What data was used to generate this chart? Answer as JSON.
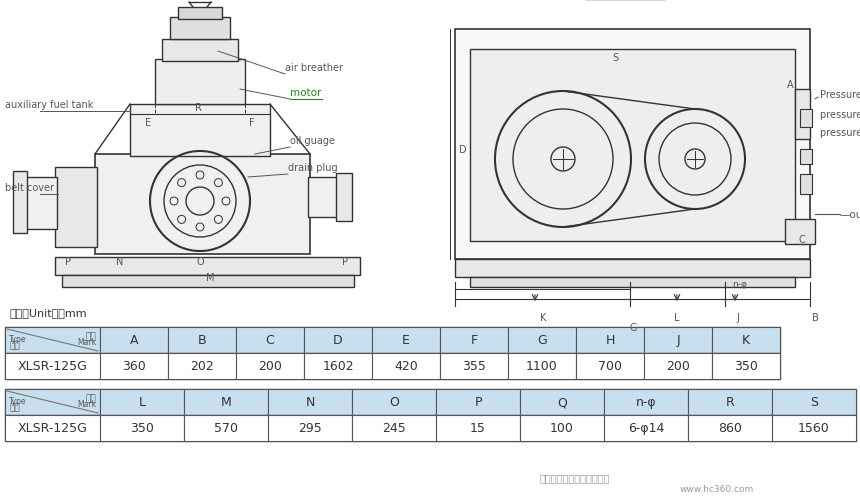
{
  "title_unit": "单位（Unit）；mm",
  "table1_headers": [
    "A",
    "B",
    "C",
    "D",
    "E",
    "F",
    "G",
    "H",
    "J",
    "K"
  ],
  "table1_row": [
    "XLSR-125G",
    "360",
    "202",
    "200",
    "1602",
    "420",
    "355",
    "1100",
    "700",
    "200",
    "350"
  ],
  "table2_headers": [
    "L",
    "M",
    "N",
    "O",
    "P",
    "Q",
    "n-φ",
    "R",
    "S"
  ],
  "table2_row": [
    "XLSR-125G",
    "350",
    "570",
    "295",
    "245",
    "15",
    "100",
    "6-φ14",
    "860",
    "1560"
  ],
  "bg_color": "#ffffff",
  "table_header_bg": "#c8dff0",
  "table_border_color": "#555555",
  "table_cell_bg": "#ffffff",
  "diagram_lc": "#333333",
  "label_gray": "#555555",
  "motor_green": "#228822"
}
